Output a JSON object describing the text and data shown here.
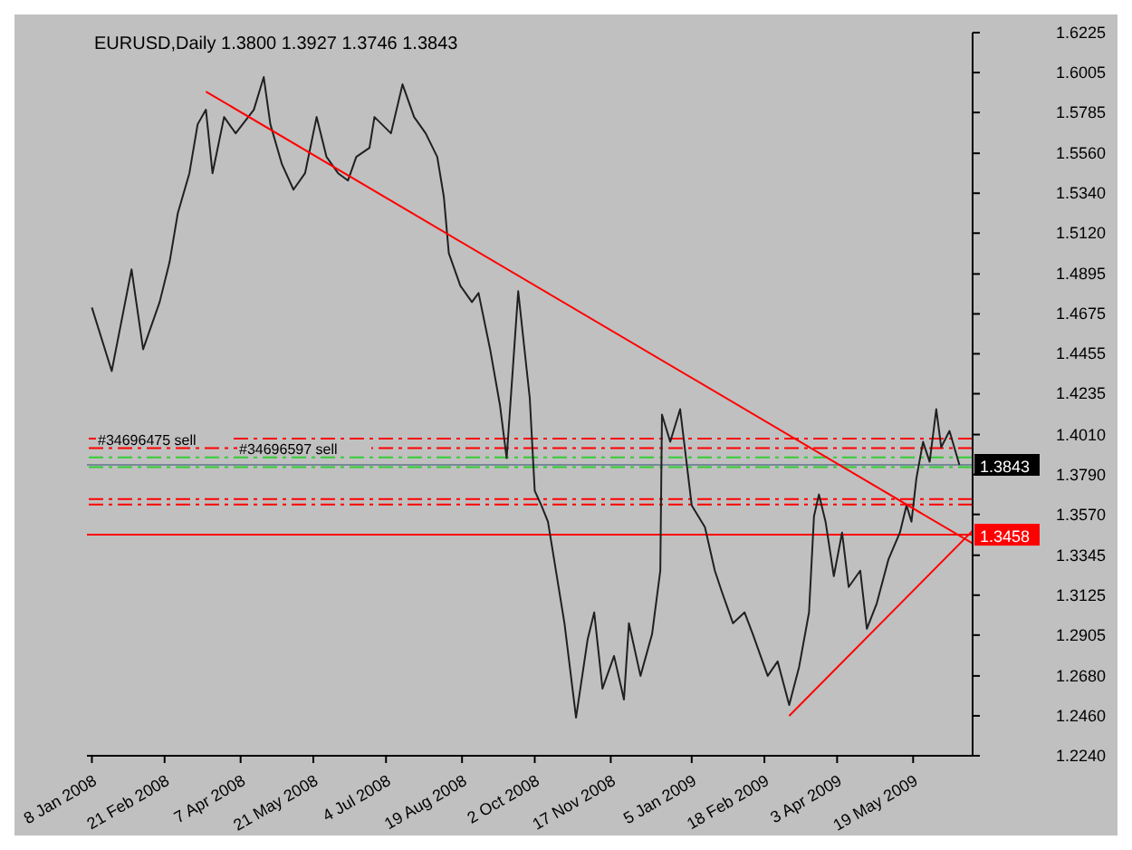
{
  "chart_data": {
    "type": "line",
    "title": "EURUSD,Daily  1.3800 1.3927 1.3746 1.3843",
    "series": [
      {
        "color": "#202020",
        "x": [
          "2008-01-08",
          "2008-01-20",
          "2008-02-01",
          "2008-02-08",
          "2008-02-18",
          "2008-02-24",
          "2008-02-29",
          "2008-03-07",
          "2008-03-12",
          "2008-03-17",
          "2008-03-21",
          "2008-03-28",
          "2008-04-04",
          "2008-04-15",
          "2008-04-21",
          "2008-04-25",
          "2008-05-02",
          "2008-05-09",
          "2008-05-16",
          "2008-05-23",
          "2008-05-29",
          "2008-06-05",
          "2008-06-11",
          "2008-06-16",
          "2008-06-24",
          "2008-06-27",
          "2008-07-07",
          "2008-07-14",
          "2008-07-21",
          "2008-07-28",
          "2008-08-04",
          "2008-08-08",
          "2008-08-11",
          "2008-08-18",
          "2008-08-25",
          "2008-08-29",
          "2008-09-05",
          "2008-09-11",
          "2008-09-15",
          "2008-09-22",
          "2008-09-29",
          "2008-10-02",
          "2008-10-06",
          "2008-10-10",
          "2008-10-20",
          "2008-10-27",
          "2008-11-03",
          "2008-11-07",
          "2008-11-12",
          "2008-11-19",
          "2008-11-25",
          "2008-11-28",
          "2008-12-05",
          "2008-12-12",
          "2008-12-17",
          "2008-12-18",
          "2008-12-23",
          "2008-12-29",
          "2009-01-05",
          "2009-01-13",
          "2009-01-19",
          "2009-01-23",
          "2009-01-30",
          "2009-02-06",
          "2009-02-11",
          "2009-02-20",
          "2009-02-26",
          "2009-03-05",
          "2009-03-11",
          "2009-03-17",
          "2009-03-20",
          "2009-03-23",
          "2009-03-27",
          "2009-04-01",
          "2009-04-06",
          "2009-04-10",
          "2009-04-17",
          "2009-04-21",
          "2009-04-27",
          "2009-05-04",
          "2009-05-11",
          "2009-05-15",
          "2009-05-18",
          "2009-05-21",
          "2009-05-25",
          "2009-05-29",
          "2009-06-02",
          "2009-06-05",
          "2009-06-10",
          "2009-06-16"
        ],
        "values": [
          1.471,
          1.436,
          1.492,
          1.448,
          1.474,
          1.496,
          1.523,
          1.545,
          1.572,
          1.58,
          1.545,
          1.576,
          1.567,
          1.58,
          1.598,
          1.572,
          1.55,
          1.536,
          1.545,
          1.576,
          1.554,
          1.545,
          1.541,
          1.554,
          1.559,
          1.576,
          1.567,
          1.594,
          1.576,
          1.567,
          1.554,
          1.532,
          1.501,
          1.483,
          1.474,
          1.479,
          1.448,
          1.417,
          1.388,
          1.48,
          1.421,
          1.37,
          1.362,
          1.353,
          1.297,
          1.245,
          1.288,
          1.303,
          1.261,
          1.279,
          1.255,
          1.297,
          1.268,
          1.291,
          1.326,
          1.412,
          1.397,
          1.415,
          1.362,
          1.35,
          1.326,
          1.315,
          1.297,
          1.303,
          1.291,
          1.268,
          1.276,
          1.252,
          1.273,
          1.303,
          1.356,
          1.368,
          1.353,
          1.323,
          1.347,
          1.317,
          1.326,
          1.294,
          1.308,
          1.332,
          1.347,
          1.362,
          1.353,
          1.377,
          1.397,
          1.386,
          1.415,
          1.394,
          1.403,
          1.3843
        ]
      },
      {
        "type": "line",
        "color": "#ff0000",
        "x": [
          "2008-03-17",
          "2009-06-24"
        ],
        "values": [
          1.59,
          1.341
        ]
      },
      {
        "type": "line",
        "color": "#ff0000",
        "x": [
          "2009-03-05",
          "2009-06-24"
        ],
        "values": [
          1.246,
          1.348
        ]
      }
    ],
    "xlim": [
      "2008-01-05",
      "2009-06-24"
    ],
    "xticks": [
      {
        "value": "2008-01-08",
        "label": "8 Jan 2008"
      },
      {
        "value": "2008-02-21",
        "label": "21 Feb 2008"
      },
      {
        "value": "2008-04-07",
        "label": "7 Apr 2008"
      },
      {
        "value": "2008-05-21",
        "label": "21 May 2008"
      },
      {
        "value": "2008-07-04",
        "label": "4 Jul 2008"
      },
      {
        "value": "2008-08-19",
        "label": "19 Aug 2008"
      },
      {
        "value": "2008-10-02",
        "label": "2 Oct 2008"
      },
      {
        "value": "2008-11-17",
        "label": "17 Nov 2008"
      },
      {
        "value": "2009-01-05",
        "label": "5 Jan 2009"
      },
      {
        "value": "2009-02-18",
        "label": "18 Feb 2009"
      },
      {
        "value": "2009-04-03",
        "label": "3 Apr 2009"
      },
      {
        "value": "2009-05-19",
        "label": "19 May 2009"
      }
    ],
    "ylim": [
      1.224,
      1.6225
    ],
    "yticks": [
      {
        "value": 1.224,
        "label": "1.2240"
      },
      {
        "value": 1.246,
        "label": "1.2460"
      },
      {
        "value": 1.268,
        "label": "1.2680"
      },
      {
        "value": 1.2905,
        "label": "1.2905"
      },
      {
        "value": 1.3125,
        "label": "1.3125"
      },
      {
        "value": 1.3345,
        "label": "1.3345"
      },
      {
        "value": 1.357,
        "label": "1.3570"
      },
      {
        "value": 1.379,
        "label": "1.3790"
      },
      {
        "value": 1.401,
        "label": "1.4010"
      },
      {
        "value": 1.4235,
        "label": "1.4235"
      },
      {
        "value": 1.4455,
        "label": "1.4455"
      },
      {
        "value": 1.4675,
        "label": "1.4675"
      },
      {
        "value": 1.4895,
        "label": "1.4895"
      },
      {
        "value": 1.512,
        "label": "1.5120"
      },
      {
        "value": 1.534,
        "label": "1.5340"
      },
      {
        "value": 1.556,
        "label": "1.5560"
      },
      {
        "value": 1.5785,
        "label": "1.5785"
      },
      {
        "value": 1.6005,
        "label": "1.6005"
      },
      {
        "value": 1.6225,
        "label": "1.6225"
      }
    ],
    "ref_lines": [
      {
        "axis": "y",
        "value": 1.3988,
        "color": "#ff0000",
        "line_style": "dashed"
      },
      {
        "axis": "y",
        "value": 1.3935,
        "color": "#ff0000",
        "line_style": "dashed",
        "label": "#34696475 sell"
      },
      {
        "axis": "y",
        "value": 1.3884,
        "color": "#33cc33",
        "line_style": "dashed",
        "label": "#34696597 sell"
      },
      {
        "axis": "y",
        "value": 1.3831,
        "color": "#33cc33",
        "line_style": "dashed"
      },
      {
        "axis": "y",
        "value": 1.3843,
        "color": "#778899",
        "line_style": "solid",
        "label": "1.3843"
      },
      {
        "axis": "y",
        "value": 1.3654,
        "color": "#ff0000",
        "line_style": "dashed"
      },
      {
        "axis": "y",
        "value": 1.3625,
        "color": "#ff0000",
        "line_style": "dashed"
      },
      {
        "axis": "y",
        "value": 1.3458,
        "color": "#ff0000",
        "line_style": "solid",
        "label": "1.3458"
      }
    ],
    "marker": "none",
    "line_style": "solid"
  }
}
